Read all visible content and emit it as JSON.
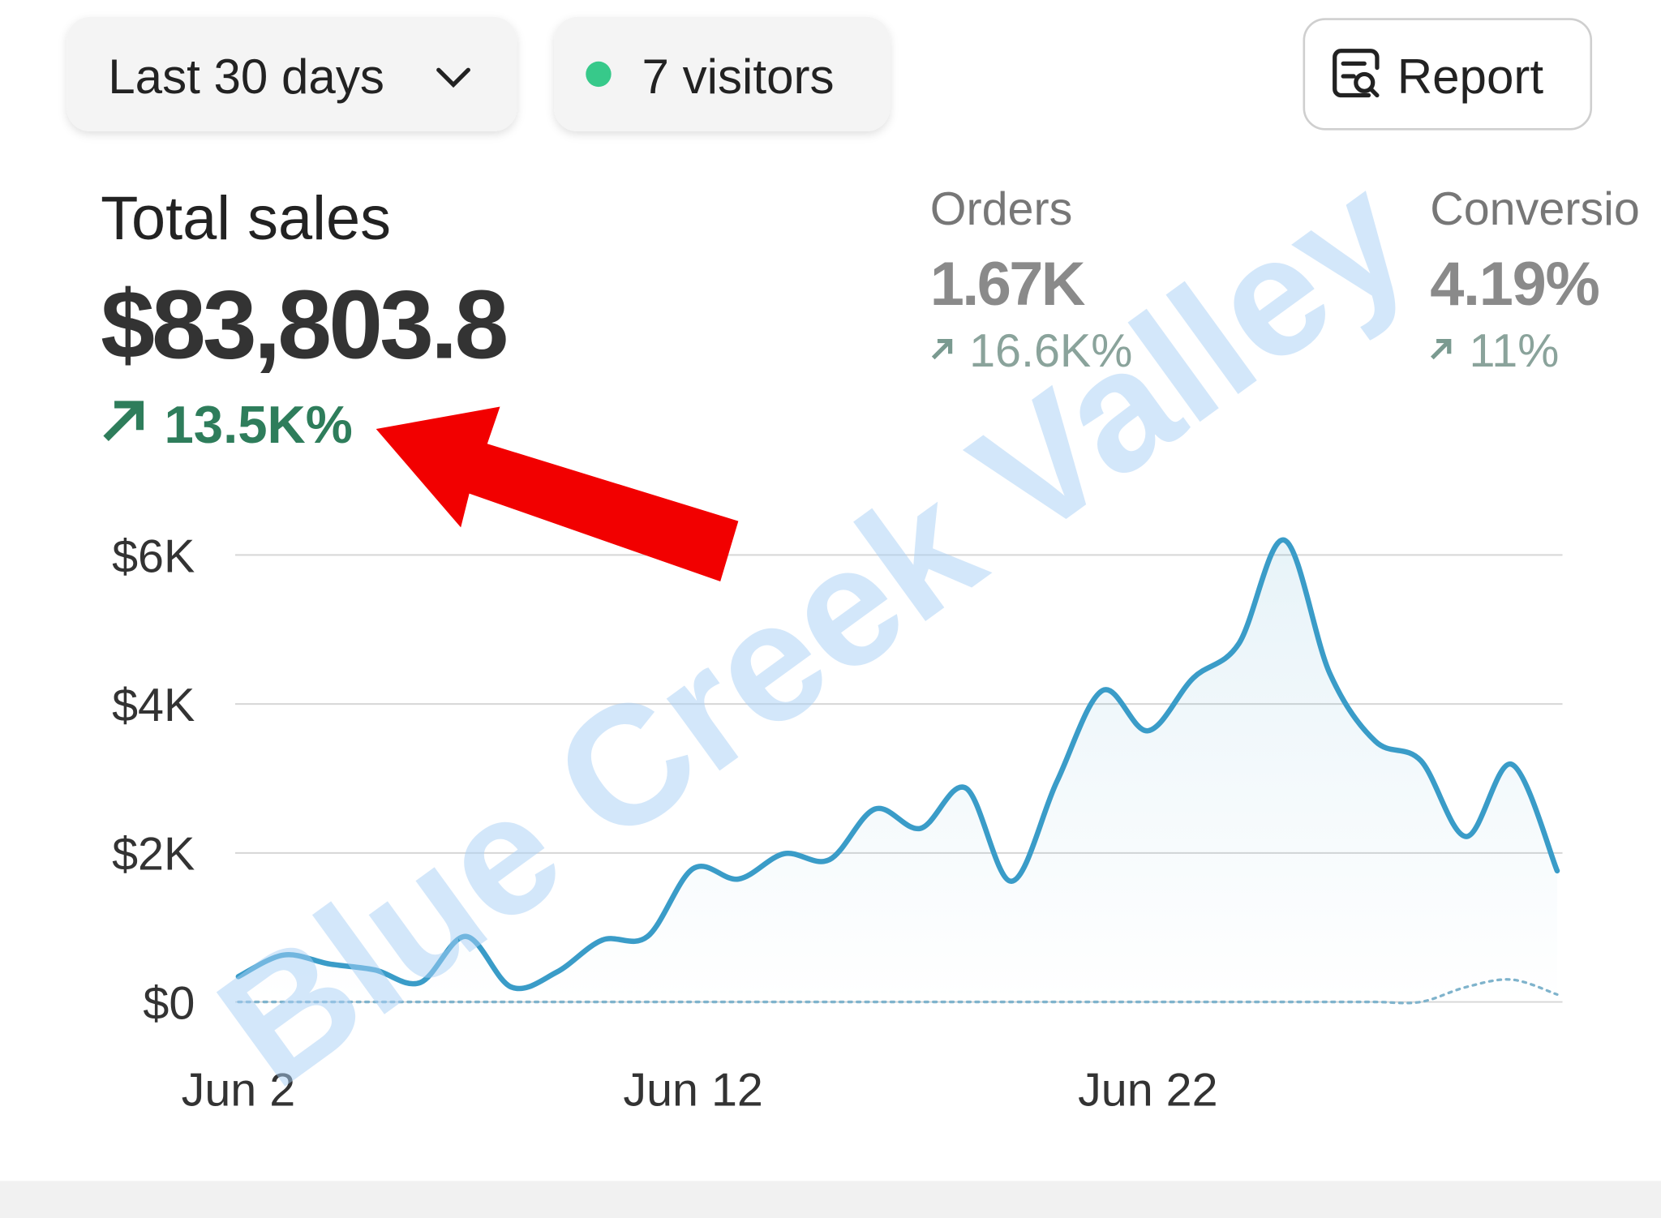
{
  "toolbar": {
    "period": "Last 30 days",
    "visitors": "7 visitors",
    "report": "Report"
  },
  "metrics": [
    {
      "label": "Total sales",
      "value": "$83,803.8",
      "change": "13.5K%"
    },
    {
      "label": "Orders",
      "value": "1.67K",
      "change": "16.6K%"
    },
    {
      "label": "Conversio",
      "value": "4.19%",
      "change": "11%"
    }
  ],
  "watermark": "Blue Creek Valley",
  "chart_data": {
    "type": "line",
    "categories": [
      "Jun 2",
      null,
      null,
      null,
      null,
      null,
      null,
      null,
      null,
      null,
      "Jun 12",
      null,
      null,
      null,
      null,
      null,
      null,
      null,
      null,
      null,
      "Jun 22",
      null,
      null,
      null,
      null,
      null,
      null,
      null,
      null,
      null
    ],
    "series": [
      {
        "color": "#3a9cc8",
        "values": [
          340,
          630,
          510,
          430,
          260,
          880,
          200,
          400,
          830,
          880,
          1790,
          1650,
          1990,
          1910,
          2590,
          2330,
          2870,
          1620,
          2960,
          4180,
          3640,
          4350,
          4810,
          6200,
          4410,
          3500,
          3240,
          2220,
          3190,
          1760
        ]
      },
      {
        "color": "#7fb3cc",
        "dashed": true,
        "values": [
          0,
          0,
          0,
          0,
          0,
          0,
          0,
          0,
          0,
          0,
          0,
          0,
          0,
          0,
          0,
          0,
          0,
          0,
          0,
          0,
          0,
          0,
          0,
          0,
          0,
          0,
          0,
          200,
          300,
          100
        ]
      }
    ],
    "ylim": [
      0,
      6300
    ],
    "yticks": [
      {
        "value": 0,
        "label": "$0"
      },
      {
        "value": 2000,
        "label": "$2K"
      },
      {
        "value": 4000,
        "label": "$4K"
      },
      {
        "value": 6000,
        "label": "$6K"
      }
    ],
    "grid": true
  }
}
